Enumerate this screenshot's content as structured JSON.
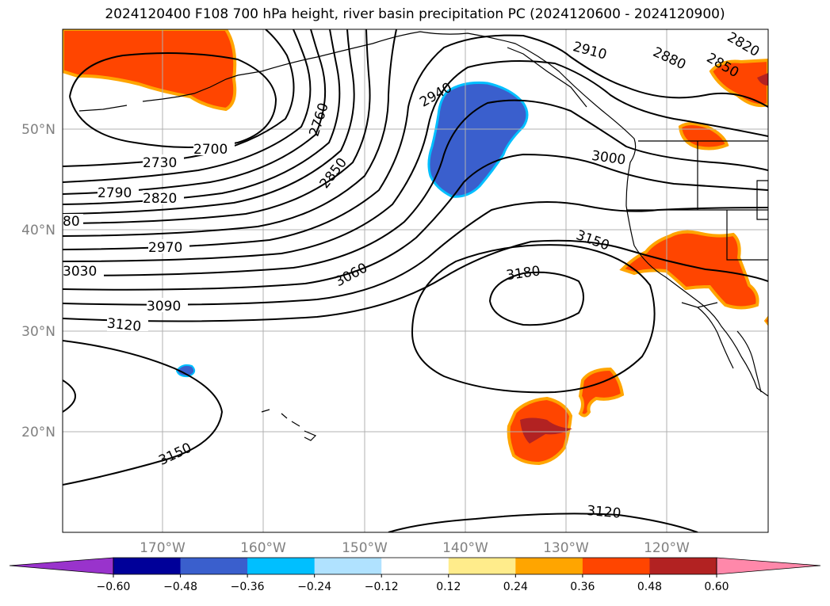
{
  "title": "2024120400 F108 700 hPa height, river basin precipitation PC (2024120600 - 2024120900)",
  "lat_labels": [
    "50°N",
    "40°N",
    "30°N",
    "20°N"
  ],
  "lon_labels": [
    "170°W",
    "160°W",
    "150°W",
    "140°W",
    "130°W",
    "120°W"
  ],
  "contour_labels": {
    "c2700": "2700",
    "c2730": "2730",
    "c2760": "2760",
    "c2790": "2790",
    "c2820": "2820",
    "c2820b": "2820",
    "c2850": "2850",
    "c2850b": "2850",
    "c2880": "2880",
    "c2880w": "80",
    "c2910": "2910",
    "c2940": "2940",
    "c2970": "2970",
    "c3000": "3000",
    "c3030": "3030",
    "c3060": "3060",
    "c3090": "3090",
    "c3120": "3120",
    "c3120b": "3120",
    "c3150": "3150",
    "c3150b": "3150",
    "c3180": "3180"
  },
  "colorbar": {
    "ticks": [
      "−0.60",
      "−0.48",
      "−0.36",
      "−0.24",
      "−0.12",
      "0.12",
      "0.24",
      "0.36",
      "0.48",
      "0.60"
    ],
    "colors": [
      "#9933cc",
      "#000099",
      "#3a5fcd",
      "#00bfff",
      "#b0e2ff",
      "#ffffff",
      "#ffec8b",
      "#ffa500",
      "#ff4500",
      "#b22222",
      "#ff88aa"
    ]
  },
  "fill_colors": {
    "positive": "#ff4500",
    "positive_edge": "#ffa500",
    "strong_positive": "#b22222",
    "negative": "#3a5fcd",
    "negative_edge": "#00bfff"
  }
}
